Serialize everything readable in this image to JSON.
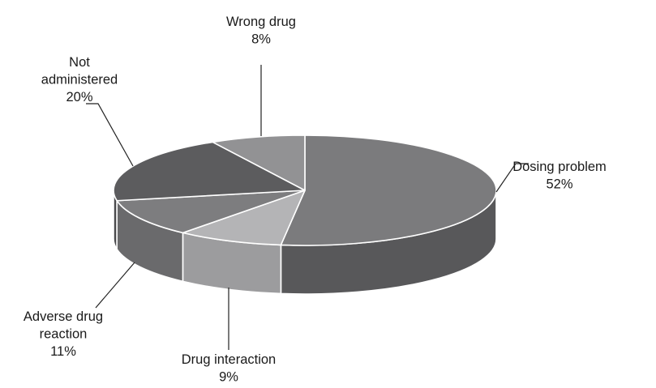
{
  "chart_data": {
    "type": "pie",
    "style": "3d",
    "slices": [
      {
        "label_lines": [
          "Dosing problem"
        ],
        "percent_text": "52%",
        "value": 52,
        "top_color": "#7b7b7d",
        "side_color": "#58585a"
      },
      {
        "label_lines": [
          "Drug interaction"
        ],
        "percent_text": "9%",
        "value": 9,
        "top_color": "#b4b4b6",
        "side_color": "#9c9c9e"
      },
      {
        "label_lines": [
          "Adverse drug",
          "reaction"
        ],
        "percent_text": "11%",
        "value": 11,
        "top_color": "#7d7d7f",
        "side_color": "#6a6a6c"
      },
      {
        "label_lines": [
          "Not",
          "administered"
        ],
        "percent_text": "20%",
        "value": 20,
        "top_color": "#5c5c5e",
        "side_color": "#4a4a4c"
      },
      {
        "label_lines": [
          "Wrong drug"
        ],
        "percent_text": "8%",
        "value": 8,
        "top_color": "#929294",
        "side_color": "#7a7a7c"
      }
    ],
    "start_angle_deg": -90,
    "direction": "clockwise",
    "edge_color": "#ffffff"
  }
}
